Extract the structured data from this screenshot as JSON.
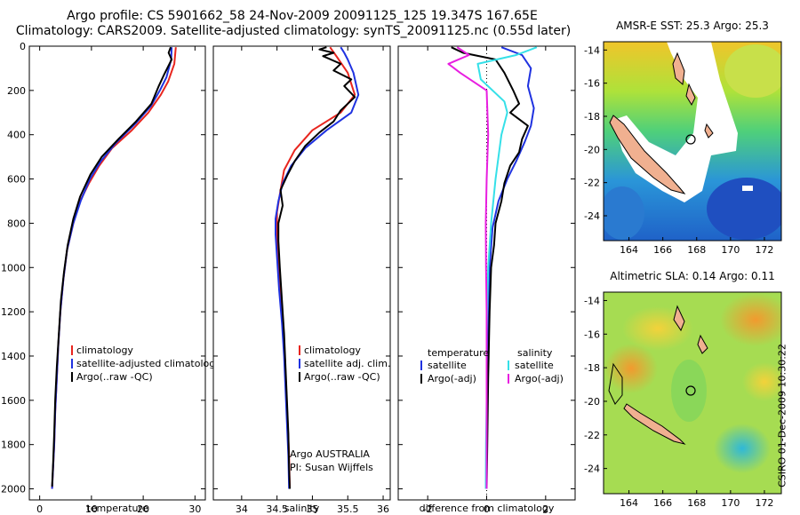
{
  "header": {
    "line1": "Argo profile: CS 5901662_58 24-Nov-2009 20091125_125 19.347S 167.65E",
    "line2": "Climatology: CARS2009. Satellite-adjusted climatology: synTS_20091125.nc (0.55d later)"
  },
  "credit": "CSIRO 01-Dec-2009 10:30:22",
  "colors": {
    "climatology": "#e8251e",
    "satellite": "#1f32e0",
    "argo": "#000000",
    "satellite_diff": "#35e0e8",
    "argo_diff": "#e81ee0"
  },
  "chart_data": [
    {
      "type": "line",
      "name": "temperature-panel",
      "xlabel": "temperature",
      "ylabel": "",
      "xlim": [
        -2,
        32
      ],
      "ylim": [
        2050,
        0
      ],
      "xticks": [
        0,
        10,
        20,
        30
      ],
      "yticks": [
        0,
        200,
        400,
        600,
        800,
        1000,
        1200,
        1400,
        1600,
        1800,
        2000
      ],
      "legend": {
        "position": "lower-right",
        "entries": [
          {
            "key": "climatology",
            "label": "climatology"
          },
          {
            "key": "satellite",
            "label": "satellite-adjusted climatology"
          },
          {
            "key": "argo",
            "label": "Argo(..raw -QC)"
          }
        ]
      },
      "series": [
        {
          "name": "climatology",
          "color_key": "climatology",
          "points": [
            [
              26.3,
              5
            ],
            [
              26.0,
              80
            ],
            [
              24.8,
              160
            ],
            [
              23.4,
              220
            ],
            [
              21.0,
              300
            ],
            [
              17.8,
              380
            ],
            [
              14.0,
              460
            ],
            [
              11.5,
              540
            ],
            [
              9.5,
              620
            ],
            [
              7.8,
              700
            ],
            [
              6.5,
              800
            ],
            [
              5.3,
              920
            ],
            [
              4.6,
              1050
            ],
            [
              4.0,
              1200
            ],
            [
              3.6,
              1350
            ],
            [
              3.3,
              1500
            ],
            [
              3.0,
              1650
            ],
            [
              2.8,
              1800
            ],
            [
              2.6,
              1900
            ],
            [
              2.4,
              2000
            ]
          ]
        },
        {
          "name": "satellite",
          "color_key": "satellite",
          "points": [
            [
              25.5,
              5
            ],
            [
              25.4,
              60
            ],
            [
              24.5,
              140
            ],
            [
              23.2,
              200
            ],
            [
              21.5,
              270
            ],
            [
              18.5,
              350
            ],
            [
              14.6,
              440
            ],
            [
              11.8,
              520
            ],
            [
              9.7,
              600
            ],
            [
              7.9,
              700
            ],
            [
              6.5,
              800
            ],
            [
              5.3,
              920
            ],
            [
              4.6,
              1050
            ],
            [
              4.0,
              1200
            ],
            [
              3.6,
              1350
            ],
            [
              3.3,
              1500
            ],
            [
              3.0,
              1650
            ],
            [
              2.8,
              1800
            ],
            [
              2.6,
              1900
            ],
            [
              2.4,
              2000
            ]
          ]
        },
        {
          "name": "argo",
          "color_key": "argo",
          "points": [
            [
              25.3,
              5
            ],
            [
              24.9,
              30
            ],
            [
              25.5,
              60
            ],
            [
              24.0,
              130
            ],
            [
              23.0,
              180
            ],
            [
              21.6,
              260
            ],
            [
              18.6,
              340
            ],
            [
              15.2,
              420
            ],
            [
              12.0,
              500
            ],
            [
              9.8,
              580
            ],
            [
              7.8,
              680
            ],
            [
              6.5,
              780
            ],
            [
              5.4,
              900
            ],
            [
              4.7,
              1020
            ],
            [
              4.1,
              1150
            ],
            [
              3.7,
              1300
            ],
            [
              3.3,
              1450
            ],
            [
              3.0,
              1600
            ],
            [
              2.8,
              1750
            ],
            [
              2.6,
              1880
            ],
            [
              2.4,
              1990
            ]
          ]
        }
      ]
    },
    {
      "type": "line",
      "name": "salinity-panel",
      "xlabel": "salinity",
      "ylabel": "",
      "xlim": [
        33.6,
        36.1
      ],
      "ylim": [
        2050,
        0
      ],
      "xticks": [
        34,
        34.5,
        35,
        35.5,
        36
      ],
      "tick_labels": [
        "34",
        "34.5",
        "35",
        "35.5",
        "36"
      ],
      "legend": {
        "position": "lower-right",
        "entries": [
          {
            "key": "climatology",
            "label": "climatology"
          },
          {
            "key": "satellite",
            "label": "satellite adj. clim."
          },
          {
            "key": "argo",
            "label": "Argo(..raw -QC)"
          }
        ]
      },
      "annotation": {
        "line1": "Argo AUSTRALIA",
        "line2": "PI: Susan Wijffels"
      },
      "series": [
        {
          "name": "climatology",
          "color_key": "climatology",
          "points": [
            [
              35.25,
              5
            ],
            [
              35.35,
              50
            ],
            [
              35.5,
              120
            ],
            [
              35.6,
              220
            ],
            [
              35.4,
              300
            ],
            [
              35.0,
              380
            ],
            [
              34.75,
              470
            ],
            [
              34.6,
              560
            ],
            [
              34.55,
              650
            ],
            [
              34.5,
              750
            ],
            [
              34.5,
              850
            ],
            [
              34.52,
              950
            ],
            [
              34.55,
              1100
            ],
            [
              34.58,
              1250
            ],
            [
              34.61,
              1400
            ],
            [
              34.63,
              1550
            ],
            [
              34.65,
              1700
            ],
            [
              34.67,
              1850
            ],
            [
              34.68,
              2000
            ]
          ]
        },
        {
          "name": "satellite",
          "color_key": "satellite",
          "points": [
            [
              35.4,
              5
            ],
            [
              35.45,
              30
            ],
            [
              35.5,
              60
            ],
            [
              35.58,
              120
            ],
            [
              35.65,
              220
            ],
            [
              35.55,
              300
            ],
            [
              35.2,
              380
            ],
            [
              34.9,
              460
            ],
            [
              34.7,
              540
            ],
            [
              34.58,
              620
            ],
            [
              34.52,
              700
            ],
            [
              34.48,
              780
            ],
            [
              34.48,
              850
            ],
            [
              34.5,
              950
            ],
            [
              34.53,
              1100
            ],
            [
              34.57,
              1250
            ],
            [
              34.6,
              1400
            ],
            [
              34.62,
              1550
            ],
            [
              34.64,
              1700
            ],
            [
              34.66,
              1850
            ],
            [
              34.67,
              2000
            ]
          ]
        },
        {
          "name": "argo",
          "color_key": "argo",
          "points": [
            [
              35.2,
              5
            ],
            [
              35.1,
              15
            ],
            [
              35.3,
              30
            ],
            [
              35.15,
              45
            ],
            [
              35.4,
              80
            ],
            [
              35.3,
              110
            ],
            [
              35.55,
              150
            ],
            [
              35.45,
              180
            ],
            [
              35.6,
              230
            ],
            [
              35.4,
              290
            ],
            [
              35.3,
              340
            ],
            [
              35.1,
              390
            ],
            [
              34.9,
              450
            ],
            [
              34.75,
              520
            ],
            [
              34.65,
              580
            ],
            [
              34.55,
              650
            ],
            [
              34.58,
              720
            ],
            [
              34.52,
              800
            ],
            [
              34.52,
              880
            ],
            [
              34.54,
              1000
            ],
            [
              34.57,
              1150
            ],
            [
              34.6,
              1300
            ],
            [
              34.62,
              1450
            ],
            [
              34.64,
              1600
            ],
            [
              34.66,
              1750
            ],
            [
              34.67,
              1900
            ],
            [
              34.68,
              2000
            ]
          ]
        }
      ]
    },
    {
      "type": "line",
      "name": "difference-panel",
      "xlabel": "difference from climatology",
      "ylabel": "",
      "xlim": [
        -3,
        3
      ],
      "ylim": [
        2050,
        0
      ],
      "xticks": [
        -2,
        0,
        2
      ],
      "zero_line": true,
      "legend": {
        "position": "lower-center",
        "columns": [
          {
            "title": "temperature",
            "entries": [
              {
                "key": "satellite",
                "label": "satellite"
              },
              {
                "key": "argo",
                "label": "Argo(-adj)"
              }
            ]
          },
          {
            "title": "salinity",
            "entries": [
              {
                "key": "satellite_diff",
                "label": "satellite"
              },
              {
                "key": "argo_diff",
                "label": "Argo(-adj)"
              }
            ]
          }
        ]
      },
      "series": [
        {
          "name": "temp-satellite",
          "color_key": "satellite",
          "points": [
            [
              0.5,
              5
            ],
            [
              1.2,
              40
            ],
            [
              1.5,
              100
            ],
            [
              1.4,
              180
            ],
            [
              1.6,
              280
            ],
            [
              1.5,
              360
            ],
            [
              1.3,
              430
            ],
            [
              1.0,
              520
            ],
            [
              0.7,
              600
            ],
            [
              0.4,
              700
            ],
            [
              0.2,
              820
            ],
            [
              0.1,
              1000
            ],
            [
              0.05,
              1200
            ],
            [
              0.02,
              1500
            ],
            [
              0.0,
              1800
            ],
            [
              0.0,
              2000
            ]
          ]
        },
        {
          "name": "temp-argo",
          "color_key": "argo",
          "points": [
            [
              -1.2,
              5
            ],
            [
              -0.8,
              30
            ],
            [
              0.3,
              60
            ],
            [
              0.6,
              120
            ],
            [
              0.9,
              200
            ],
            [
              1.1,
              260
            ],
            [
              0.8,
              300
            ],
            [
              1.4,
              360
            ],
            [
              1.2,
              420
            ],
            [
              1.1,
              480
            ],
            [
              0.8,
              540
            ],
            [
              0.6,
              620
            ],
            [
              0.5,
              700
            ],
            [
              0.3,
              800
            ],
            [
              0.25,
              900
            ],
            [
              0.15,
              1000
            ],
            [
              0.1,
              1200
            ],
            [
              0.05,
              1500
            ],
            [
              0.02,
              1800
            ],
            [
              0.0,
              2000
            ]
          ]
        },
        {
          "name": "sal-satellite",
          "color_key": "satellite_diff",
          "points": [
            [
              1.7,
              5
            ],
            [
              1.0,
              40
            ],
            [
              -0.3,
              80
            ],
            [
              -0.2,
              150
            ],
            [
              0.6,
              250
            ],
            [
              0.7,
              300
            ],
            [
              0.5,
              400
            ],
            [
              0.4,
              500
            ],
            [
              0.3,
              600
            ],
            [
              0.15,
              800
            ],
            [
              0.05,
              1000
            ],
            [
              0.0,
              1300
            ],
            [
              0.0,
              1600
            ],
            [
              -0.02,
              1800
            ],
            [
              -0.03,
              2000
            ]
          ]
        },
        {
          "name": "sal-argo",
          "color_key": "argo_diff",
          "points": [
            [
              -1.0,
              5
            ],
            [
              -0.6,
              40
            ],
            [
              -1.3,
              80
            ],
            [
              -0.9,
              120
            ],
            [
              0.0,
              200
            ],
            [
              0.05,
              400
            ],
            [
              0.0,
              600
            ],
            [
              -0.03,
              800
            ],
            [
              -0.02,
              1000
            ],
            [
              0.0,
              1200
            ],
            [
              0.0,
              1500
            ],
            [
              0.0,
              2000
            ]
          ]
        }
      ]
    },
    {
      "type": "heatmap",
      "name": "sst-map",
      "title": "AMSR-E SST: 25.3  Argo: 25.3",
      "xlim": [
        162.5,
        173
      ],
      "ylim": [
        -25.5,
        -13.5
      ],
      "xticks": [
        164,
        166,
        168,
        170,
        172
      ],
      "yticks": [
        -14,
        -16,
        -18,
        -20,
        -22,
        -24
      ],
      "marker": {
        "lon": 167.65,
        "lat": -19.347
      }
    },
    {
      "type": "heatmap",
      "name": "sla-map",
      "title": "Altimetric SLA: 0.14  Argo: 0.11",
      "xlim": [
        162.5,
        173
      ],
      "ylim": [
        -25.5,
        -13.5
      ],
      "xticks": [
        164,
        166,
        168,
        170,
        172
      ],
      "yticks": [
        -14,
        -16,
        -18,
        -20,
        -22,
        -24
      ],
      "marker": {
        "lon": 167.65,
        "lat": -19.347
      }
    }
  ]
}
